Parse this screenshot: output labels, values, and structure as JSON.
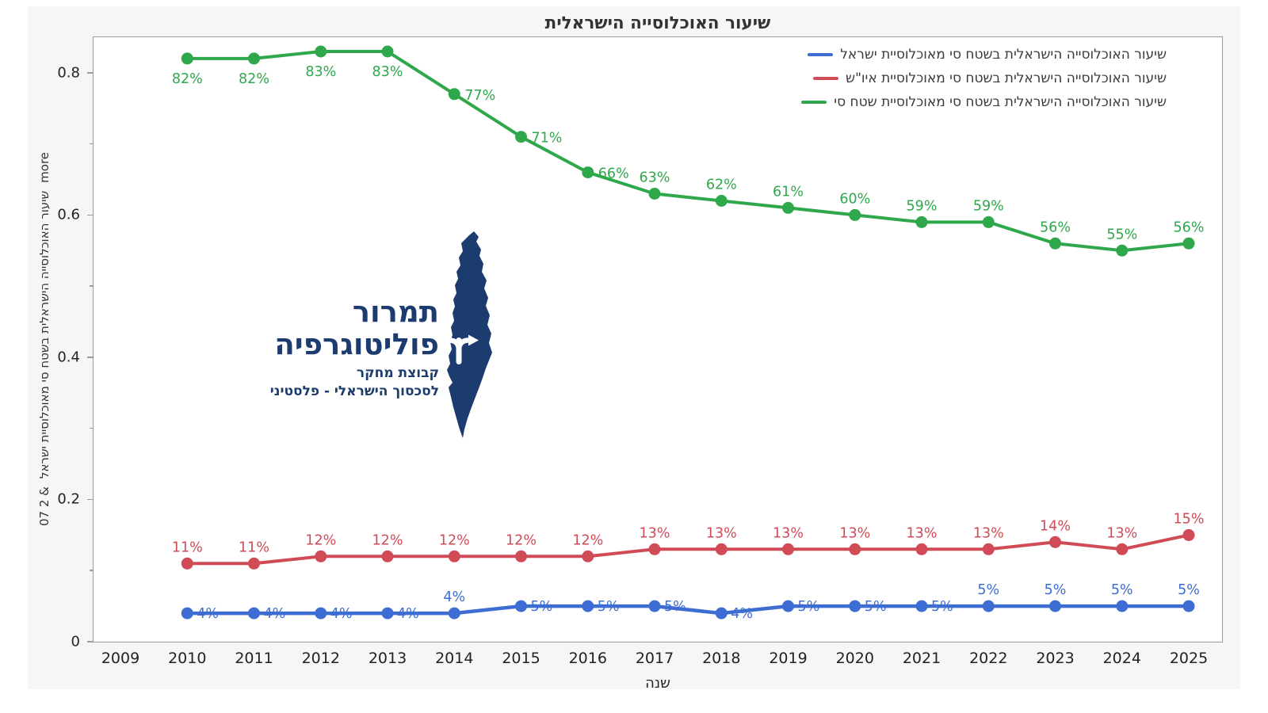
{
  "chart": {
    "title": "שיעור האוכלוסייה הישראלית",
    "xlabel": "שנה",
    "ylabel_bottom": "07 2 &",
    "ylabel_middle": "שיעור האוכלוסייה הישראלית בשטח סי מאוכלוסיית ישראל",
    "ylabel_top": "more"
  },
  "logo": {
    "line1": "תמרור",
    "line2": "פוליטוגרפיה",
    "sub1": "קבוצת מחקר",
    "sub2": "לסכסוך הישראלי - פלסטיני",
    "map_color": "#1c3b6e",
    "arrow_color": "#ffffff"
  },
  "colors": {
    "panel_background": "#f5f6f7",
    "plot_background": "#ffffff",
    "plot_border": "#9b9b9b",
    "title_text": "#333333",
    "axis_text": "#222222",
    "series_blue": "#3d6dd2",
    "series_red": "#d14b57",
    "series_green": "#2fa84c"
  },
  "chart_data": {
    "type": "line",
    "title": "שיעור האוכלוסייה הישראלית",
    "xlabel": "שנה",
    "ylabel": "more שיעור האוכלוסייה הישראלית בשטח סי מאוכלוסיית ישראל & 2 07",
    "grid": false,
    "legend_position": "top-right",
    "axis_years": [
      2009,
      2010,
      2011,
      2012,
      2013,
      2014,
      2015,
      2016,
      2017,
      2018,
      2019,
      2020,
      2021,
      2022,
      2023,
      2024,
      2025
    ],
    "x": [
      2010,
      2011,
      2012,
      2013,
      2014,
      2015,
      2016,
      2017,
      2018,
      2019,
      2020,
      2021,
      2022,
      2023,
      2024,
      2025
    ],
    "ylim": [
      0,
      0.85
    ],
    "yticks": [
      0,
      0.2,
      0.4,
      0.6,
      0.8
    ],
    "ytick_labels": [
      "0",
      "0.2",
      "0.4",
      "0.6",
      "0.8"
    ],
    "yminor_ticks": [
      0.1,
      0.3,
      0.5,
      0.7
    ],
    "series": [
      {
        "name": "שיעור האוכלוסייה הישראלית בשטח סי מאוכלוסיית ישראל",
        "color": "#3d6dd2",
        "line_width": 4.5,
        "values": [
          0.04,
          0.04,
          0.04,
          0.04,
          0.04,
          0.05,
          0.05,
          0.05,
          0.04,
          0.05,
          0.05,
          0.05,
          0.05,
          0.05,
          0.05,
          0.05
        ],
        "labels": [
          "4%",
          "4%",
          "4%",
          "4%",
          "4%",
          "5%",
          "5%",
          "5%",
          "4%",
          "5%",
          "5%",
          "5%",
          "5%",
          "5%",
          "5%",
          "5%"
        ],
        "label_pos": [
          "inline",
          "inline",
          "inline",
          "inline",
          "above",
          "inline",
          "inline",
          "inline",
          "inline",
          "inline",
          "inline",
          "inline",
          "above",
          "above",
          "above",
          "above"
        ]
      },
      {
        "name": "שיעור האוכלוסייה הישראלית בשטח סי מאוכלוסיית איו\"ש",
        "color": "#d14b57",
        "line_width": 4,
        "values": [
          0.11,
          0.11,
          0.12,
          0.12,
          0.12,
          0.12,
          0.12,
          0.13,
          0.13,
          0.13,
          0.13,
          0.13,
          0.13,
          0.14,
          0.13,
          0.15
        ],
        "labels": [
          "11%",
          "11%",
          "12%",
          "12%",
          "12%",
          "12%",
          "12%",
          "13%",
          "13%",
          "13%",
          "13%",
          "13%",
          "13%",
          "14%",
          "13%",
          "15%"
        ],
        "label_pos": [
          "above",
          "above",
          "above",
          "above",
          "above",
          "above",
          "above",
          "above",
          "above",
          "above",
          "above",
          "above",
          "above",
          "above",
          "above",
          "above"
        ]
      },
      {
        "name": "שיעור האוכלוסייה הישראלית בשטח סי מאוכלוסיית שטח סי",
        "color": "#2fa84c",
        "line_width": 4,
        "values": [
          0.82,
          0.82,
          0.83,
          0.83,
          0.77,
          0.71,
          0.66,
          0.63,
          0.62,
          0.61,
          0.6,
          0.59,
          0.59,
          0.56,
          0.55,
          0.56
        ],
        "labels": [
          "82%",
          "82%",
          "83%",
          "83%",
          "77%",
          "71%",
          "66%",
          "63%",
          "62%",
          "61%",
          "60%",
          "59%",
          "59%",
          "56%",
          "55%",
          "56%"
        ],
        "label_pos": [
          "below",
          "below",
          "below",
          "below",
          "right",
          "right",
          "right",
          "above",
          "above",
          "above",
          "above",
          "above",
          "above",
          "above",
          "above",
          "above"
        ]
      }
    ]
  }
}
